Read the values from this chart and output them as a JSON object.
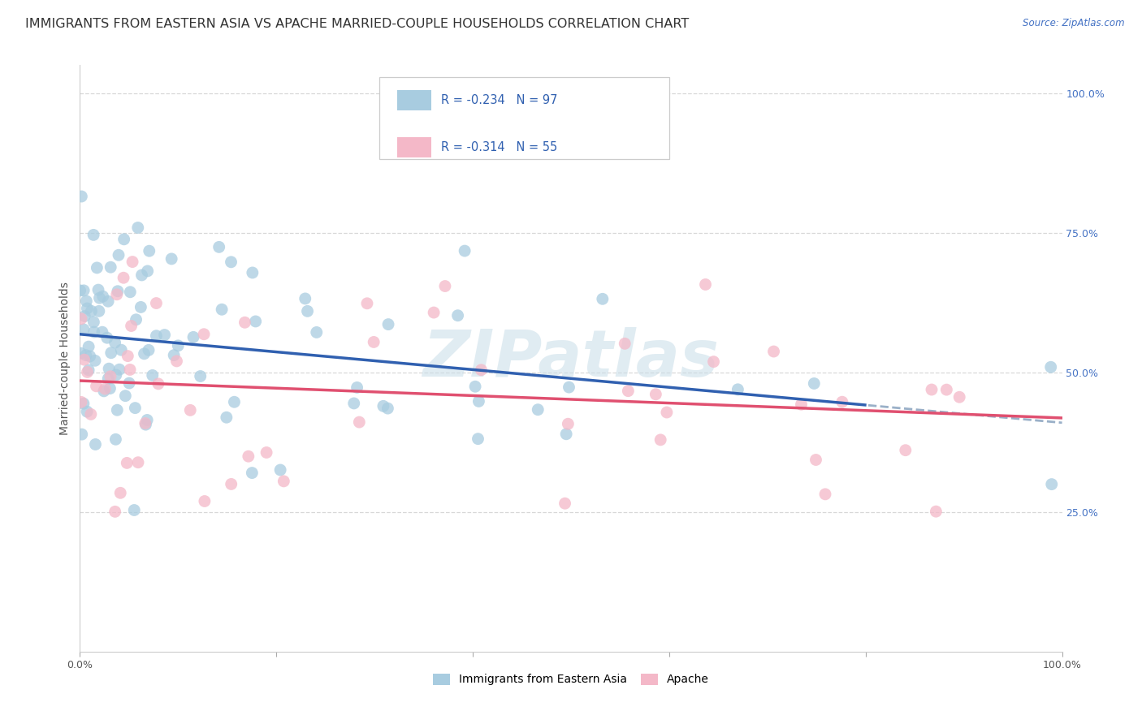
{
  "title": "IMMIGRANTS FROM EASTERN ASIA VS APACHE MARRIED-COUPLE HOUSEHOLDS CORRELATION CHART",
  "source": "Source: ZipAtlas.com",
  "ylabel": "Married-couple Households",
  "legend_label1": "Immigrants from Eastern Asia",
  "legend_label2": "Apache",
  "R1": -0.234,
  "N1": 97,
  "R2": -0.314,
  "N2": 55,
  "color_blue": "#a8cce0",
  "color_pink": "#f4b8c8",
  "line_color_blue": "#3060b0",
  "line_color_pink": "#e05070",
  "line_color_dashed": "#9ab0c8",
  "background_color": "#ffffff",
  "watermark": "ZIPatlas",
  "watermark_color": "#c8dde8",
  "title_fontsize": 11.5,
  "axis_label_fontsize": 10,
  "tick_fontsize": 9,
  "right_tick_color": "#4472c4",
  "xlim": [
    0,
    1
  ],
  "ylim": [
    0,
    1.05
  ],
  "grid_color": "#d8d8d8",
  "spine_color": "#cccccc"
}
